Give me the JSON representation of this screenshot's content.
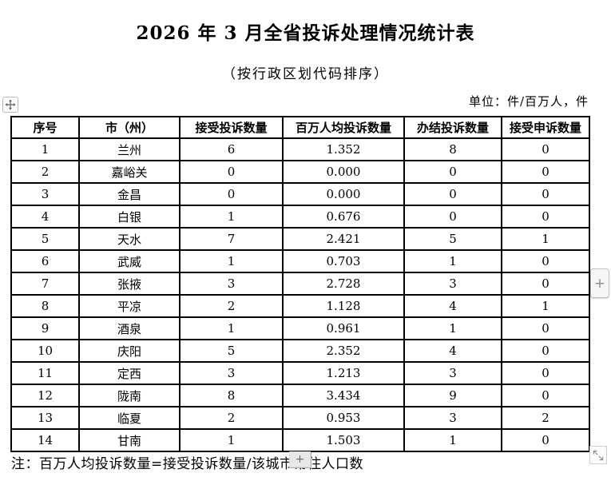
{
  "document": {
    "title": "2026 年 3 月全省投诉处理情况统计表",
    "subtitle": "（按行政区划代码排序）",
    "unit_label": "单位：件/百万人，件",
    "note": "注：百万人均投诉数量=接受投诉数量/该城市常住人口数"
  },
  "table": {
    "headers": [
      "序号",
      "市（州）",
      "接受投诉数量",
      "百万人均投诉数量",
      "办结投诉数量",
      "接受申诉数量"
    ],
    "rows": [
      [
        "1",
        "兰州",
        "6",
        "1.352",
        "8",
        "0"
      ],
      [
        "2",
        "嘉峪关",
        "0",
        "0.000",
        "0",
        "0"
      ],
      [
        "3",
        "金昌",
        "0",
        "0.000",
        "0",
        "0"
      ],
      [
        "4",
        "白银",
        "1",
        "0.676",
        "0",
        "0"
      ],
      [
        "5",
        "天水",
        "7",
        "2.421",
        "5",
        "1"
      ],
      [
        "6",
        "武威",
        "1",
        "0.703",
        "1",
        "0"
      ],
      [
        "7",
        "张掖",
        "3",
        "2.728",
        "3",
        "0"
      ],
      [
        "8",
        "平凉",
        "2",
        "1.128",
        "4",
        "1"
      ],
      [
        "9",
        "酒泉",
        "1",
        "0.961",
        "1",
        "0"
      ],
      [
        "10",
        "庆阳",
        "5",
        "2.352",
        "4",
        "0"
      ],
      [
        "11",
        "定西",
        "3",
        "1.213",
        "3",
        "0"
      ],
      [
        "12",
        "陇南",
        "8",
        "3.434",
        "9",
        "0"
      ],
      [
        "13",
        "临夏",
        "2",
        "0.953",
        "3",
        "2"
      ],
      [
        "14",
        "甘南",
        "1",
        "1.503",
        "1",
        "0"
      ]
    ]
  },
  "editor_widgets": {
    "move_handle_icon": "move-cross",
    "insert_button_icon": "+",
    "note_handle_icon": "+",
    "resize_handle_icon": "diagonal-arrows"
  },
  "colors": {
    "page_background": "#ffffff",
    "table_border": "#000000",
    "text": "#000000",
    "widget_border": "#c3c3c3",
    "widget_background": "#f6f6f6",
    "note_handle_background": "#e8e8e8"
  }
}
